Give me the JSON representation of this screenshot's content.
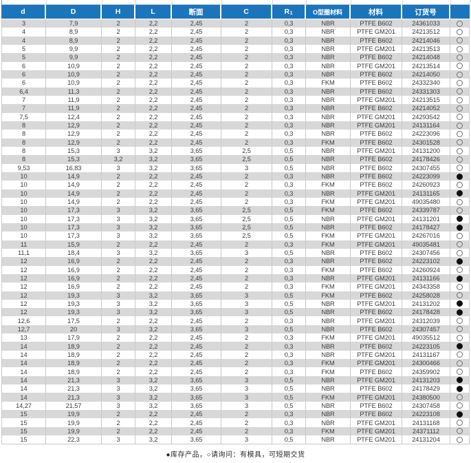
{
  "colors": {
    "header_bg": "#1b75bc",
    "header_text": "#ffffff",
    "row_alt_bg": "#d8d8d8",
    "row_bg": "#ffffff",
    "grid_line": "#c9c9c9",
    "text": "#3d3d3d"
  },
  "table": {
    "columns": [
      {
        "id": "d",
        "label": "d"
      },
      {
        "id": "D",
        "label": "D"
      },
      {
        "id": "H",
        "label": "H"
      },
      {
        "id": "L",
        "label": "L"
      },
      {
        "id": "section",
        "label": "断面"
      },
      {
        "id": "C",
        "label": "C"
      },
      {
        "id": "R1",
        "label": "R",
        "sub": "1"
      },
      {
        "id": "oring-material",
        "label": "O型圈材料"
      },
      {
        "id": "material",
        "label": "材料"
      },
      {
        "id": "order-no",
        "label": "订货号"
      },
      {
        "id": "status",
        "label": ""
      }
    ],
    "rows": [
      [
        "3",
        "7,9",
        "2",
        "2,2",
        "2,45",
        "2",
        "0,3",
        "NBR",
        "PTFE B602",
        "24361033",
        "○"
      ],
      [
        "4",
        "8,9",
        "2",
        "2,2",
        "2,45",
        "2",
        "0,3",
        "NBR",
        "PTFE GM201",
        "24213512",
        "○"
      ],
      [
        "4",
        "8,9",
        "2",
        "2,2",
        "2,45",
        "2",
        "0,3",
        "NBR",
        "PTFE B602",
        "24214046",
        "○"
      ],
      [
        "5",
        "9,9",
        "2",
        "2,2",
        "2,45",
        "2",
        "0,3",
        "NBR",
        "PTFE GM201",
        "24213513",
        "○"
      ],
      [
        "5",
        "9,9",
        "2",
        "2,2",
        "2,45",
        "2",
        "0,3",
        "NBR",
        "PTFE B602",
        "24214048",
        "○"
      ],
      [
        "6",
        "10,9",
        "2",
        "2,2",
        "2,45",
        "2",
        "0,3",
        "NBR",
        "PTFE GM201",
        "24213514",
        "○"
      ],
      [
        "6",
        "10,9",
        "2",
        "2,2",
        "2,45",
        "2",
        "0,3",
        "NBR",
        "PTFE B602",
        "24214050",
        "○"
      ],
      [
        "6",
        "10,9",
        "2",
        "2,2",
        "2,45",
        "2",
        "0,3",
        "FKM",
        "PTFE B602",
        "24332340",
        "○"
      ],
      [
        "6,4",
        "11,3",
        "2",
        "2,2",
        "2,45",
        "2",
        "0,3",
        "NBR",
        "PTFE B602",
        "24331303",
        "○"
      ],
      [
        "7",
        "11,9",
        "2",
        "2,2",
        "2,45",
        "2",
        "0,3",
        "NBR",
        "PTFE GM201",
        "24213515",
        "○"
      ],
      [
        "7",
        "11,9",
        "2",
        "2,2",
        "2,45",
        "2",
        "0,3",
        "NBR",
        "PTFE B602",
        "24214052",
        "○"
      ],
      [
        "7,5",
        "12,4",
        "2",
        "2,2",
        "2,45",
        "2",
        "0,3",
        "NBR",
        "PTFE GM201",
        "24293542",
        "○"
      ],
      [
        "8",
        "12,9",
        "2",
        "2,2",
        "2,45",
        "2",
        "0,3",
        "NBR",
        "PTFE GM201",
        "24131164",
        "○"
      ],
      [
        "8",
        "12,9",
        "2",
        "2,2",
        "2,45",
        "2",
        "0,3",
        "NBR",
        "PTFE B602",
        "24223096",
        "○"
      ],
      [
        "8",
        "12,9",
        "2",
        "2,2",
        "2,45",
        "2",
        "0,3",
        "FKM",
        "PTFE B602",
        "24301528",
        "○"
      ],
      [
        "8",
        "15,3",
        "3",
        "3,2",
        "3,65",
        "2,5",
        "0,5",
        "NBR",
        "PTFE GM201",
        "24131200",
        "○"
      ],
      [
        "8",
        "15,3",
        "3,2",
        "3,2",
        "3,65",
        "2,5",
        "0,5",
        "NBR",
        "PTFE B602",
        "24178426",
        "○"
      ],
      [
        "9,53",
        "16,83",
        "3",
        "3,2",
        "3,65",
        "3",
        "0,5",
        "NBR",
        "PTFE B602",
        "24307455",
        "○"
      ],
      [
        "10",
        "14,9",
        "2",
        "2,2",
        "2,45",
        "2",
        "0,3",
        "NBR",
        "PTFE B602",
        "24223099",
        "●"
      ],
      [
        "10",
        "14,9",
        "2",
        "2,2",
        "2,45",
        "2",
        "0,3",
        "FKM",
        "PTFE B602",
        "24260923",
        "○"
      ],
      [
        "10",
        "14,9",
        "2",
        "2,2",
        "2,45",
        "2",
        "0,3",
        "NBR",
        "PTFE GM201",
        "24131165",
        "●"
      ],
      [
        "10",
        "14,9",
        "2",
        "2,2",
        "2,45",
        "2",
        "0,3",
        "FKM",
        "PTFE GM201",
        "49035480",
        "○"
      ],
      [
        "10",
        "17,3",
        "3",
        "3,2",
        "3,65",
        "2,5",
        "0,5",
        "FKM",
        "PTFE B602",
        "24339787",
        "○"
      ],
      [
        "10",
        "17,3",
        "3",
        "3,2",
        "3,65",
        "2,5",
        "0,5",
        "NBR",
        "PTFE GM201",
        "24131201",
        "●"
      ],
      [
        "10",
        "17,3",
        "3",
        "3,2",
        "3,65",
        "2,5",
        "0,5",
        "NBR",
        "PTFE B602",
        "24178427",
        "●"
      ],
      [
        "10",
        "17,3",
        "3",
        "3,2",
        "3,65",
        "2,5",
        "0,5",
        "FKM",
        "PTFE GM201",
        "24267016",
        "○"
      ],
      [
        "11",
        "15,9",
        "2",
        "2,2",
        "2,45",
        "2",
        "0,3",
        "FKM",
        "PTFE GM201",
        "49035481",
        "○"
      ],
      [
        "11,1",
        "18,4",
        "3",
        "3,2",
        "3,65",
        "3",
        "0,5",
        "NBR",
        "PTFE B602",
        "24307456",
        "○"
      ],
      [
        "12",
        "16,9",
        "2",
        "2,2",
        "2,45",
        "2",
        "0,3",
        "NBR",
        "PTFE B602",
        "24223102",
        "●"
      ],
      [
        "12",
        "16,9",
        "2",
        "2,2",
        "2,45",
        "2",
        "0,3",
        "FKM",
        "PTFE B602",
        "24260924",
        "○"
      ],
      [
        "12",
        "16,9",
        "2",
        "2,2",
        "2,45",
        "2",
        "0,3",
        "NBR",
        "PTFE GM201",
        "24131166",
        "●"
      ],
      [
        "12",
        "16,9",
        "2",
        "2,2",
        "2,45",
        "2",
        "0,3",
        "FKM",
        "PTFE GM201",
        "24343358",
        "○"
      ],
      [
        "12",
        "19,3",
        "3",
        "3,2",
        "3,65",
        "3",
        "0,5",
        "FKM",
        "PTFE B602",
        "24258028",
        "○"
      ],
      [
        "12",
        "19,3",
        "3",
        "3,2",
        "3,65",
        "3",
        "0,5",
        "NBR",
        "PTFE GM201",
        "24131202",
        "●"
      ],
      [
        "12",
        "19,3",
        "3",
        "3,2",
        "3,65",
        "3",
        "0,5",
        "NBR",
        "PTFE B602",
        "24178428",
        "●"
      ],
      [
        "12,6",
        "17,5",
        "2",
        "2,2",
        "2,45",
        "2",
        "0,3",
        "NBR",
        "PTFE GM201",
        "24312039",
        "○"
      ],
      [
        "12,7",
        "20",
        "3",
        "3,2",
        "3,65",
        "3",
        "0,5",
        "NBR",
        "PTFE B602",
        "24307457",
        "○"
      ],
      [
        "13",
        "17,9",
        "2",
        "2,2",
        "2,45",
        "2",
        "0,3",
        "FKM",
        "PTFE GM201",
        "49035512",
        "○"
      ],
      [
        "14",
        "18,9",
        "2",
        "2,2",
        "2,45",
        "2",
        "0,3",
        "NBR",
        "PTFE B602",
        "24223105",
        "●"
      ],
      [
        "14",
        "18,9",
        "2",
        "2,2",
        "2,45",
        "2",
        "0,3",
        "NBR",
        "PTFE GM201",
        "24131167",
        "○"
      ],
      [
        "14",
        "18,9",
        "2",
        "2,2",
        "2,45",
        "2",
        "0,3",
        "FKM",
        "PTFE GM201",
        "24300466",
        "○"
      ],
      [
        "14",
        "18,9",
        "2",
        "2,2",
        "2,45",
        "2",
        "0,3",
        "FKM",
        "PTFE B602",
        "24359902",
        "○"
      ],
      [
        "14",
        "21,3",
        "3",
        "3,2",
        "3,65",
        "3",
        "0,5",
        "NBR",
        "PTFE GM201",
        "24131203",
        "●"
      ],
      [
        "14",
        "21,3",
        "3",
        "3,2",
        "3,65",
        "3",
        "0,5",
        "NBR",
        "PTFE B602",
        "24178429",
        "●"
      ],
      [
        "14",
        "21,3",
        "3",
        "3,2",
        "3,65",
        "3",
        "0,5",
        "FKM",
        "PTFE GM201",
        "24380500",
        "○"
      ],
      [
        "14,27",
        "21,57",
        "3",
        "3,2",
        "3,65",
        "3",
        "0,5",
        "NBR",
        "PTFE B602",
        "24307458",
        "○"
      ],
      [
        "15",
        "19,9",
        "2",
        "2,2",
        "2,45",
        "2",
        "0,3",
        "NBR",
        "PTFE B602",
        "24223108",
        "●"
      ],
      [
        "15",
        "19,9",
        "2",
        "2,2",
        "2,45",
        "2",
        "0,3",
        "NBR",
        "PTFE GM201",
        "24131168",
        "○"
      ],
      [
        "15",
        "19,9",
        "2",
        "2,2",
        "2,45",
        "2",
        "0,3",
        "FKM",
        "PTFE GM201",
        "24371112",
        "○"
      ],
      [
        "15",
        "22,3",
        "3",
        "3,2",
        "3,65",
        "3",
        "0,5",
        "NBR",
        "PTFE GM201",
        "24131204",
        "○"
      ]
    ]
  },
  "legend": {
    "stock_symbol": "●",
    "inquiry_symbol": "○",
    "text": "●库存产品，○请询问：有模具，可短期交货"
  }
}
